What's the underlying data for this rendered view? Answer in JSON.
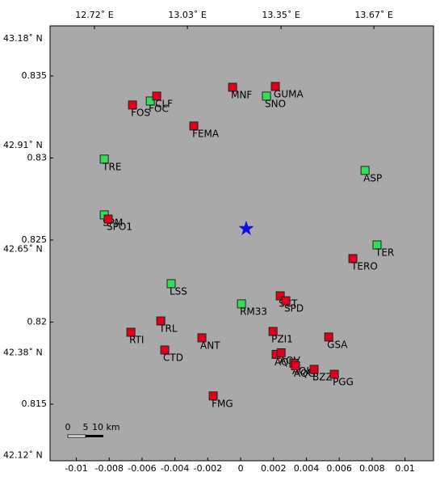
{
  "chart_data": {
    "type": "scatter",
    "xlim": [
      -0.0116,
      0.01174
    ],
    "ylim": [
      0.81155,
      0.83805
    ],
    "xticks": [
      -0.01,
      -0.008,
      -0.006,
      -0.004,
      -0.002,
      0,
      0.002,
      0.004,
      0.006,
      0.008,
      0.01
    ],
    "yticks": [
      0.815,
      0.82,
      0.825,
      0.83,
      0.835
    ],
    "x2ticks": [
      {
        "value": -0.0089,
        "label": "12.72˚ E"
      },
      {
        "value": -0.00324,
        "label": "13.03˚ E"
      },
      {
        "value": 0.00246,
        "label": "13.35˚ E"
      },
      {
        "value": 0.00811,
        "label": "13.67˚ E"
      }
    ],
    "y2ticks": [
      {
        "value": 0.83725,
        "label": "43.18˚ N"
      },
      {
        "value": 0.83075,
        "label": "42.91˚ N"
      },
      {
        "value": 0.82444,
        "label": "42.65˚ N"
      },
      {
        "value": 0.81813,
        "label": "42.38˚ N"
      },
      {
        "value": 0.81188,
        "label": "42.12˚ N"
      }
    ],
    "points": [
      {
        "label": "FOS",
        "x": -0.00658,
        "y": 0.83323,
        "color": "#e0001b"
      },
      {
        "label": "FOC",
        "x": -0.0055,
        "y": 0.83347,
        "color": "#33dd55"
      },
      {
        "label": "CLF",
        "x": -0.00511,
        "y": 0.83377,
        "color": "#e0001b"
      },
      {
        "label": "MNF",
        "x": -0.00049,
        "y": 0.83431,
        "color": "#e0001b"
      },
      {
        "label": "GUMA",
        "x": 0.00211,
        "y": 0.83436,
        "color": "#e0001b"
      },
      {
        "label": "SNO",
        "x": 0.00157,
        "y": 0.83377,
        "color": "#33dd55"
      },
      {
        "label": "FEMA",
        "x": -0.00285,
        "y": 0.83195,
        "color": "#e0001b"
      },
      {
        "label": "TRE",
        "x": -0.0083,
        "y": 0.82993,
        "color": "#33dd55"
      },
      {
        "label": "ASP",
        "x": 0.00757,
        "y": 0.82924,
        "color": "#33dd55"
      },
      {
        "label": "SPM",
        "x": -0.0083,
        "y": 0.82653,
        "color": "#33dd55"
      },
      {
        "label": "SPO1",
        "x": -0.00806,
        "y": 0.82628,
        "color": "#e0001b"
      },
      {
        "label": "TER",
        "x": 0.0083,
        "y": 0.8247,
        "color": "#33dd55"
      },
      {
        "label": "TERO",
        "x": 0.00683,
        "y": 0.82387,
        "color": "#e0001b"
      },
      {
        "label": "LSS",
        "x": -0.00423,
        "y": 0.82234,
        "color": "#33dd55"
      },
      {
        "label": "RM33",
        "x": 5e-05,
        "y": 0.82111,
        "color": "#33dd55"
      },
      {
        "label": "SCT",
        "x": 0.00241,
        "y": 0.8216,
        "color": "#e0001b"
      },
      {
        "label": "SPD",
        "x": 0.00275,
        "y": 0.8213,
        "color": "#e0001b"
      },
      {
        "label": "TRL",
        "x": -0.00486,
        "y": 0.82007,
        "color": "#e0001b"
      },
      {
        "label": "RTI",
        "x": -0.00668,
        "y": 0.81938,
        "color": "#e0001b"
      },
      {
        "label": "PZI1",
        "x": 0.00197,
        "y": 0.81943,
        "color": "#e0001b"
      },
      {
        "label": "GSA",
        "x": 0.00536,
        "y": 0.81909,
        "color": "#e0001b"
      },
      {
        "label": "ANT",
        "x": -0.00236,
        "y": 0.81904,
        "color": "#e0001b"
      },
      {
        "label": "CTD",
        "x": -0.00462,
        "y": 0.8183,
        "color": "#e0001b"
      },
      {
        "label": "AQU",
        "x": 0.00216,
        "y": 0.81803,
        "color": "#e0001b"
      },
      {
        "label": "AQV",
        "x": 0.00246,
        "y": 0.81813,
        "color": "#e0001b"
      },
      {
        "label": "AQK",
        "x": 0.00324,
        "y": 0.81749,
        "color": "#e0001b"
      },
      {
        "label": "AQG",
        "x": 0.00334,
        "y": 0.81734,
        "color": "#e0001b"
      },
      {
        "label": "BZZ",
        "x": 0.00447,
        "y": 0.81712,
        "color": "#e0001b"
      },
      {
        "label": "PGG",
        "x": 0.0057,
        "y": 0.81682,
        "color": "#e0001b"
      },
      {
        "label": "FMG",
        "x": -0.00167,
        "y": 0.8155,
        "color": "#e0001b"
      }
    ],
    "epicenter": {
      "x": 0.00034,
      "y": 0.82569,
      "color": "#1010dd"
    },
    "scale_labels": [
      "0",
      "5",
      "10 km"
    ]
  }
}
